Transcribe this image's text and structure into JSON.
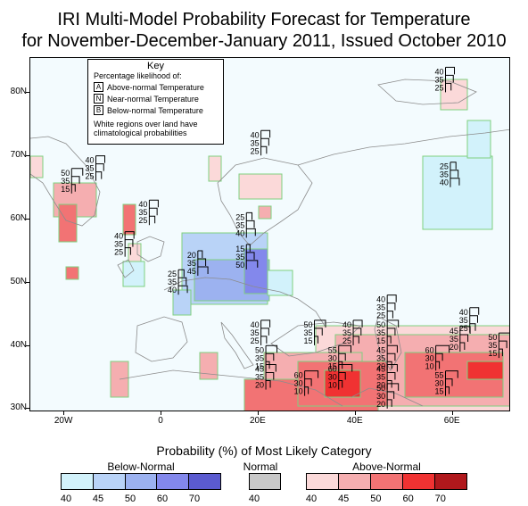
{
  "title_line1": "IRI Multi-Model Probability Forecast for Temperature",
  "title_line2": "for November-December-January 2011, Issued October 2010",
  "axes": {
    "lat_labels": [
      "80N",
      "70N",
      "60N",
      "50N",
      "40N",
      "30N"
    ],
    "lon_labels": [
      "20W",
      "0",
      "20E",
      "40E",
      "60E"
    ],
    "lat_values": [
      80,
      70,
      60,
      50,
      40,
      30
    ],
    "lon_values": [
      -20,
      0,
      20,
      40,
      60
    ],
    "lon_range": [
      -27,
      72
    ],
    "lat_range": [
      29.5,
      85.5
    ]
  },
  "key": {
    "title": "Key",
    "subtitle": "Percentage likelihood of:",
    "rows": [
      {
        "letter": "A",
        "label": "Above-normal Temperature"
      },
      {
        "letter": "N",
        "label": "Near-normal Temperature"
      },
      {
        "letter": "B",
        "label": "Below-normal Temperature"
      }
    ],
    "note_line1": "White regions over land have",
    "note_line2": "climatological probabilities"
  },
  "colors": {
    "ocean": "#f3fbfe",
    "land_outline": "#8c8c8c",
    "region_outline": "#7fd07f",
    "below": [
      "#d2f2fb",
      "#b9d3f7",
      "#9cb2f0",
      "#8388ec",
      "#5b5bd0"
    ],
    "normal": "#c8c8c8",
    "above": [
      "#fbd9d9",
      "#f5aeb0",
      "#f27374",
      "#f03232",
      "#b0181c"
    ]
  },
  "forecast_labels": [
    {
      "lon": 58.5,
      "lat": 81.5,
      "values": [
        "40",
        "35",
        "25"
      ]
    },
    {
      "lon": -13.5,
      "lat": 67.5,
      "values": [
        "40",
        "35",
        "25"
      ]
    },
    {
      "lon": -18.5,
      "lat": 65.5,
      "values": [
        "50",
        "35",
        "15"
      ]
    },
    {
      "lon": 20.5,
      "lat": 71.5,
      "values": [
        "40",
        "35",
        "25"
      ]
    },
    {
      "lon": 59.5,
      "lat": 66.5,
      "values": [
        "25",
        "35",
        "40"
      ]
    },
    {
      "lon": -2.5,
      "lat": 60.5,
      "values": [
        "40",
        "35",
        "25"
      ]
    },
    {
      "lon": -7.5,
      "lat": 55.5,
      "values": [
        "40",
        "35",
        "25"
      ]
    },
    {
      "lon": 17.5,
      "lat": 58.5,
      "values": [
        "25",
        "35",
        "40"
      ]
    },
    {
      "lon": 17.5,
      "lat": 53.5,
      "values": [
        "15",
        "35",
        "50"
      ]
    },
    {
      "lon": 7.5,
      "lat": 52.5,
      "values": [
        "20",
        "35",
        "45"
      ]
    },
    {
      "lon": 3.5,
      "lat": 49.5,
      "values": [
        "25",
        "35",
        "40"
      ]
    },
    {
      "lon": 46.5,
      "lat": 45.5,
      "values": [
        "40",
        "35",
        "25"
      ]
    },
    {
      "lon": 20.5,
      "lat": 41.5,
      "values": [
        "40",
        "35",
        "25"
      ]
    },
    {
      "lon": 31.5,
      "lat": 41.5,
      "values": [
        "50",
        "35",
        "15"
      ]
    },
    {
      "lon": 39.5,
      "lat": 41.5,
      "values": [
        "40",
        "35",
        "25"
      ]
    },
    {
      "lon": 46.5,
      "lat": 41.5,
      "values": [
        "50",
        "35",
        "15"
      ]
    },
    {
      "lon": 63.5,
      "lat": 43.5,
      "values": [
        "40",
        "35",
        "25"
      ]
    },
    {
      "lon": 61.5,
      "lat": 40.5,
      "values": [
        "45",
        "35",
        "20"
      ]
    },
    {
      "lon": 69.5,
      "lat": 39.5,
      "values": [
        "50",
        "35",
        "15"
      ]
    },
    {
      "lon": 21.5,
      "lat": 37.5,
      "values": [
        "50",
        "35",
        "15"
      ]
    },
    {
      "lon": 36.5,
      "lat": 37.5,
      "values": [
        "55",
        "30",
        "15"
      ]
    },
    {
      "lon": 46.5,
      "lat": 37.5,
      "values": [
        "45",
        "35",
        "20"
      ]
    },
    {
      "lon": 56.5,
      "lat": 37.5,
      "values": [
        "60",
        "30",
        "10"
      ]
    },
    {
      "lon": 21.5,
      "lat": 34.5,
      "values": [
        "45",
        "35",
        "20"
      ]
    },
    {
      "lon": 36.5,
      "lat": 34.5,
      "values": [
        "60",
        "30",
        "10"
      ]
    },
    {
      "lon": 46.5,
      "lat": 34.5,
      "values": [
        "45",
        "35",
        "20"
      ]
    },
    {
      "lon": 29.5,
      "lat": 33.5,
      "values": [
        "60",
        "30",
        "10"
      ]
    },
    {
      "lon": 58.5,
      "lat": 33.5,
      "values": [
        "55",
        "30",
        "15"
      ]
    },
    {
      "lon": 46.5,
      "lat": 31.5,
      "values": [
        "50",
        "30",
        "20"
      ]
    }
  ],
  "legend": {
    "title": "Probability (%) of Most Likely Category",
    "below_title": "Below-Normal",
    "normal_title": "Normal",
    "above_title": "Above-Normal",
    "below_ticks": [
      "40",
      "45",
      "50",
      "60",
      "70"
    ],
    "normal_ticks": [
      "40"
    ],
    "above_ticks": [
      "40",
      "45",
      "50",
      "60",
      "70"
    ]
  }
}
